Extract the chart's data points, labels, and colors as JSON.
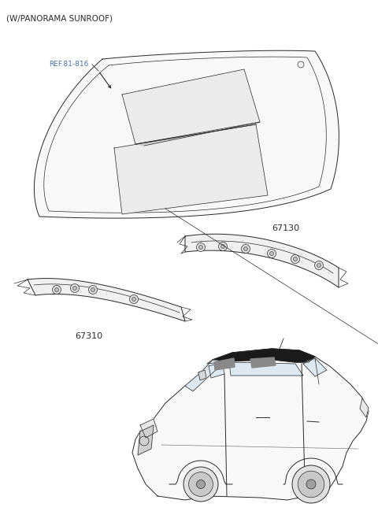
{
  "title": "(W/PANORAMA SUNROOF)",
  "bg_color": "#ffffff",
  "line_color": "#2a2a2a",
  "ref_label": "REF.81-816",
  "ref_color": "#4a6fa5",
  "part1_label": "67130",
  "part2_label": "67310",
  "label_color": "#2a2a2a",
  "fig_width": 4.8,
  "fig_height": 6.49,
  "dpi": 100
}
